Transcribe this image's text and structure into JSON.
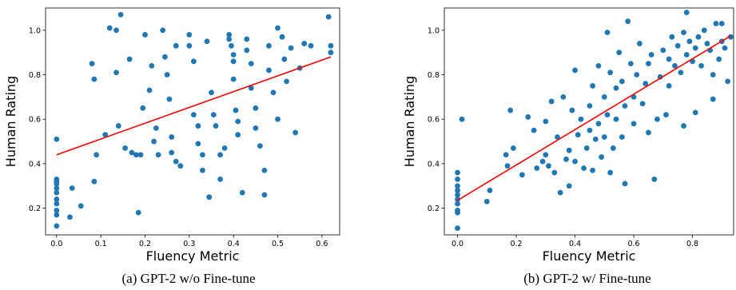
{
  "chart_data": [
    {
      "type": "scatter",
      "caption": "(a) GPT-2 w/o Fine-tune",
      "xlabel": "Fluency Metric",
      "ylabel": "Human Rating",
      "xlim": [
        -0.025,
        0.64
      ],
      "ylim": [
        0.08,
        1.1
      ],
      "xticks": [
        "0.0",
        "0.1",
        "0.2",
        "0.3",
        "0.4",
        "0.5",
        "0.6"
      ],
      "yticks": [
        "0.2",
        "0.4",
        "0.6",
        "0.8",
        "1.0"
      ],
      "grid": false,
      "point_color": "#1f77b4",
      "fit_line": {
        "color": "#ff0000",
        "x": [
          0.0,
          0.62
        ],
        "y": [
          0.44,
          0.88
        ]
      },
      "points": [
        [
          0.0,
          0.51
        ],
        [
          0.0,
          0.33
        ],
        [
          0.0,
          0.32
        ],
        [
          0.0,
          0.31
        ],
        [
          0.0,
          0.29
        ],
        [
          0.0,
          0.27
        ],
        [
          0.0,
          0.24
        ],
        [
          0.0,
          0.22
        ],
        [
          0.0,
          0.19
        ],
        [
          0.0,
          0.17
        ],
        [
          0.0,
          0.12
        ],
        [
          0.03,
          0.16
        ],
        [
          0.035,
          0.29
        ],
        [
          0.055,
          0.21
        ],
        [
          0.08,
          0.85
        ],
        [
          0.085,
          0.78
        ],
        [
          0.09,
          0.44
        ],
        [
          0.085,
          0.32
        ],
        [
          0.11,
          0.53
        ],
        [
          0.12,
          1.01
        ],
        [
          0.135,
          1.0
        ],
        [
          0.135,
          0.81
        ],
        [
          0.14,
          0.57
        ],
        [
          0.145,
          1.07
        ],
        [
          0.155,
          0.47
        ],
        [
          0.165,
          0.87
        ],
        [
          0.17,
          0.45
        ],
        [
          0.18,
          0.44
        ],
        [
          0.185,
          0.18
        ],
        [
          0.19,
          0.44
        ],
        [
          0.195,
          0.65
        ],
        [
          0.2,
          0.98
        ],
        [
          0.21,
          0.73
        ],
        [
          0.215,
          0.84
        ],
        [
          0.22,
          0.5
        ],
        [
          0.225,
          0.56
        ],
        [
          0.23,
          0.44
        ],
        [
          0.24,
          1.0
        ],
        [
          0.245,
          0.88
        ],
        [
          0.25,
          0.8
        ],
        [
          0.255,
          0.69
        ],
        [
          0.26,
          0.52
        ],
        [
          0.26,
          0.45
        ],
        [
          0.27,
          0.41
        ],
        [
          0.27,
          0.93
        ],
        [
          0.28,
          0.39
        ],
        [
          0.3,
          0.98
        ],
        [
          0.3,
          0.93
        ],
        [
          0.31,
          0.86
        ],
        [
          0.31,
          0.62
        ],
        [
          0.32,
          0.57
        ],
        [
          0.32,
          0.49
        ],
        [
          0.33,
          0.44
        ],
        [
          0.33,
          0.37
        ],
        [
          0.34,
          0.95
        ],
        [
          0.345,
          0.25
        ],
        [
          0.35,
          0.72
        ],
        [
          0.355,
          0.62
        ],
        [
          0.36,
          0.57
        ],
        [
          0.37,
          0.44
        ],
        [
          0.37,
          0.33
        ],
        [
          0.38,
          0.47
        ],
        [
          0.39,
          0.98
        ],
        [
          0.39,
          0.96
        ],
        [
          0.395,
          0.93
        ],
        [
          0.4,
          0.89
        ],
        [
          0.4,
          0.86
        ],
        [
          0.4,
          0.78
        ],
        [
          0.405,
          0.64
        ],
        [
          0.41,
          0.59
        ],
        [
          0.41,
          0.53
        ],
        [
          0.42,
          0.27
        ],
        [
          0.43,
          0.96
        ],
        [
          0.43,
          0.91
        ],
        [
          0.44,
          0.85
        ],
        [
          0.44,
          0.74
        ],
        [
          0.45,
          0.65
        ],
        [
          0.45,
          0.56
        ],
        [
          0.46,
          0.48
        ],
        [
          0.47,
          0.37
        ],
        [
          0.47,
          0.26
        ],
        [
          0.48,
          0.93
        ],
        [
          0.48,
          0.82
        ],
        [
          0.49,
          0.72
        ],
        [
          0.5,
          0.6
        ],
        [
          0.5,
          1.01
        ],
        [
          0.51,
          0.97
        ],
        [
          0.515,
          0.87
        ],
        [
          0.52,
          0.77
        ],
        [
          0.53,
          0.92
        ],
        [
          0.54,
          0.54
        ],
        [
          0.55,
          0.83
        ],
        [
          0.56,
          0.94
        ],
        [
          0.575,
          0.93
        ],
        [
          0.615,
          1.06
        ],
        [
          0.62,
          0.93
        ],
        [
          0.62,
          0.9
        ]
      ]
    },
    {
      "type": "scatter",
      "caption": "(b) GPT-2 w/ Fine-tune",
      "xlabel": "Fluency Metric",
      "ylabel": "Human Rating",
      "xlim": [
        -0.045,
        0.94
      ],
      "ylim": [
        0.08,
        1.1
      ],
      "xticks": [
        "0.0",
        "0.2",
        "0.4",
        "0.6",
        "0.8"
      ],
      "yticks": [
        "0.2",
        "0.4",
        "0.6",
        "0.8",
        "1.0"
      ],
      "grid": false,
      "point_color": "#1f77b4",
      "fit_line": {
        "color": "#ff0000",
        "x": [
          0.0,
          0.93
        ],
        "y": [
          0.235,
          0.975
        ]
      },
      "points": [
        [
          0.0,
          0.36
        ],
        [
          0.0,
          0.33
        ],
        [
          0.0,
          0.3
        ],
        [
          0.0,
          0.28
        ],
        [
          0.0,
          0.26
        ],
        [
          0.0,
          0.24
        ],
        [
          0.0,
          0.22
        ],
        [
          0.0,
          0.19
        ],
        [
          0.0,
          0.18
        ],
        [
          0.0,
          0.11
        ],
        [
          0.015,
          0.6
        ],
        [
          0.1,
          0.23
        ],
        [
          0.11,
          0.28
        ],
        [
          0.165,
          0.44
        ],
        [
          0.17,
          0.39
        ],
        [
          0.18,
          0.64
        ],
        [
          0.19,
          0.47
        ],
        [
          0.22,
          0.35
        ],
        [
          0.24,
          0.61
        ],
        [
          0.26,
          0.55
        ],
        [
          0.27,
          0.38
        ],
        [
          0.29,
          0.41
        ],
        [
          0.3,
          0.44
        ],
        [
          0.3,
          0.59
        ],
        [
          0.31,
          0.39
        ],
        [
          0.32,
          0.68
        ],
        [
          0.33,
          0.36
        ],
        [
          0.34,
          0.52
        ],
        [
          0.35,
          0.27
        ],
        [
          0.36,
          0.7
        ],
        [
          0.37,
          0.42
        ],
        [
          0.38,
          0.3
        ],
        [
          0.38,
          0.46
        ],
        [
          0.39,
          0.64
        ],
        [
          0.4,
          0.41
        ],
        [
          0.4,
          0.82
        ],
        [
          0.41,
          0.53
        ],
        [
          0.42,
          0.6
        ],
        [
          0.43,
          0.38
        ],
        [
          0.44,
          0.47
        ],
        [
          0.45,
          0.55
        ],
        [
          0.45,
          0.66
        ],
        [
          0.46,
          0.75
        ],
        [
          0.46,
          0.37
        ],
        [
          0.47,
          0.51
        ],
        [
          0.48,
          0.58
        ],
        [
          0.48,
          0.84
        ],
        [
          0.49,
          0.43
        ],
        [
          0.5,
          0.7
        ],
        [
          0.5,
          0.52
        ],
        [
          0.51,
          0.62
        ],
        [
          0.51,
          0.99
        ],
        [
          0.52,
          0.81
        ],
        [
          0.52,
          0.36
        ],
        [
          0.53,
          0.47
        ],
        [
          0.54,
          0.6
        ],
        [
          0.54,
          0.74
        ],
        [
          0.55,
          0.9
        ],
        [
          0.56,
          0.77
        ],
        [
          0.56,
          0.52
        ],
        [
          0.57,
          0.66
        ],
        [
          0.57,
          0.31
        ],
        [
          0.58,
          1.04
        ],
        [
          0.59,
          0.85
        ],
        [
          0.6,
          0.7
        ],
        [
          0.6,
          0.58
        ],
        [
          0.61,
          0.8
        ],
        [
          0.62,
          0.94
        ],
        [
          0.63,
          0.67
        ],
        [
          0.64,
          0.76
        ],
        [
          0.65,
          0.85
        ],
        [
          0.65,
          0.54
        ],
        [
          0.66,
          0.89
        ],
        [
          0.67,
          0.33
        ],
        [
          0.68,
          0.6
        ],
        [
          0.69,
          0.79
        ],
        [
          0.7,
          0.91
        ],
        [
          0.71,
          0.62
        ],
        [
          0.72,
          0.75
        ],
        [
          0.72,
          0.87
        ],
        [
          0.73,
          0.97
        ],
        [
          0.74,
          0.84
        ],
        [
          0.75,
          0.93
        ],
        [
          0.76,
          0.81
        ],
        [
          0.77,
          0.99
        ],
        [
          0.77,
          0.57
        ],
        [
          0.78,
          1.08
        ],
        [
          0.78,
          0.89
        ],
        [
          0.79,
          0.95
        ],
        [
          0.8,
          0.86
        ],
        [
          0.81,
          0.92
        ],
        [
          0.81,
          0.63
        ],
        [
          0.82,
          0.97
        ],
        [
          0.83,
          0.84
        ],
        [
          0.84,
          1.0
        ],
        [
          0.85,
          0.94
        ],
        [
          0.86,
          0.91
        ],
        [
          0.87,
          0.69
        ],
        [
          0.87,
          0.8
        ],
        [
          0.88,
          1.03
        ],
        [
          0.89,
          0.87
        ],
        [
          0.9,
          0.95
        ],
        [
          0.9,
          1.03
        ],
        [
          0.91,
          0.92
        ],
        [
          0.92,
          0.77
        ],
        [
          0.93,
          0.97
        ]
      ]
    }
  ]
}
